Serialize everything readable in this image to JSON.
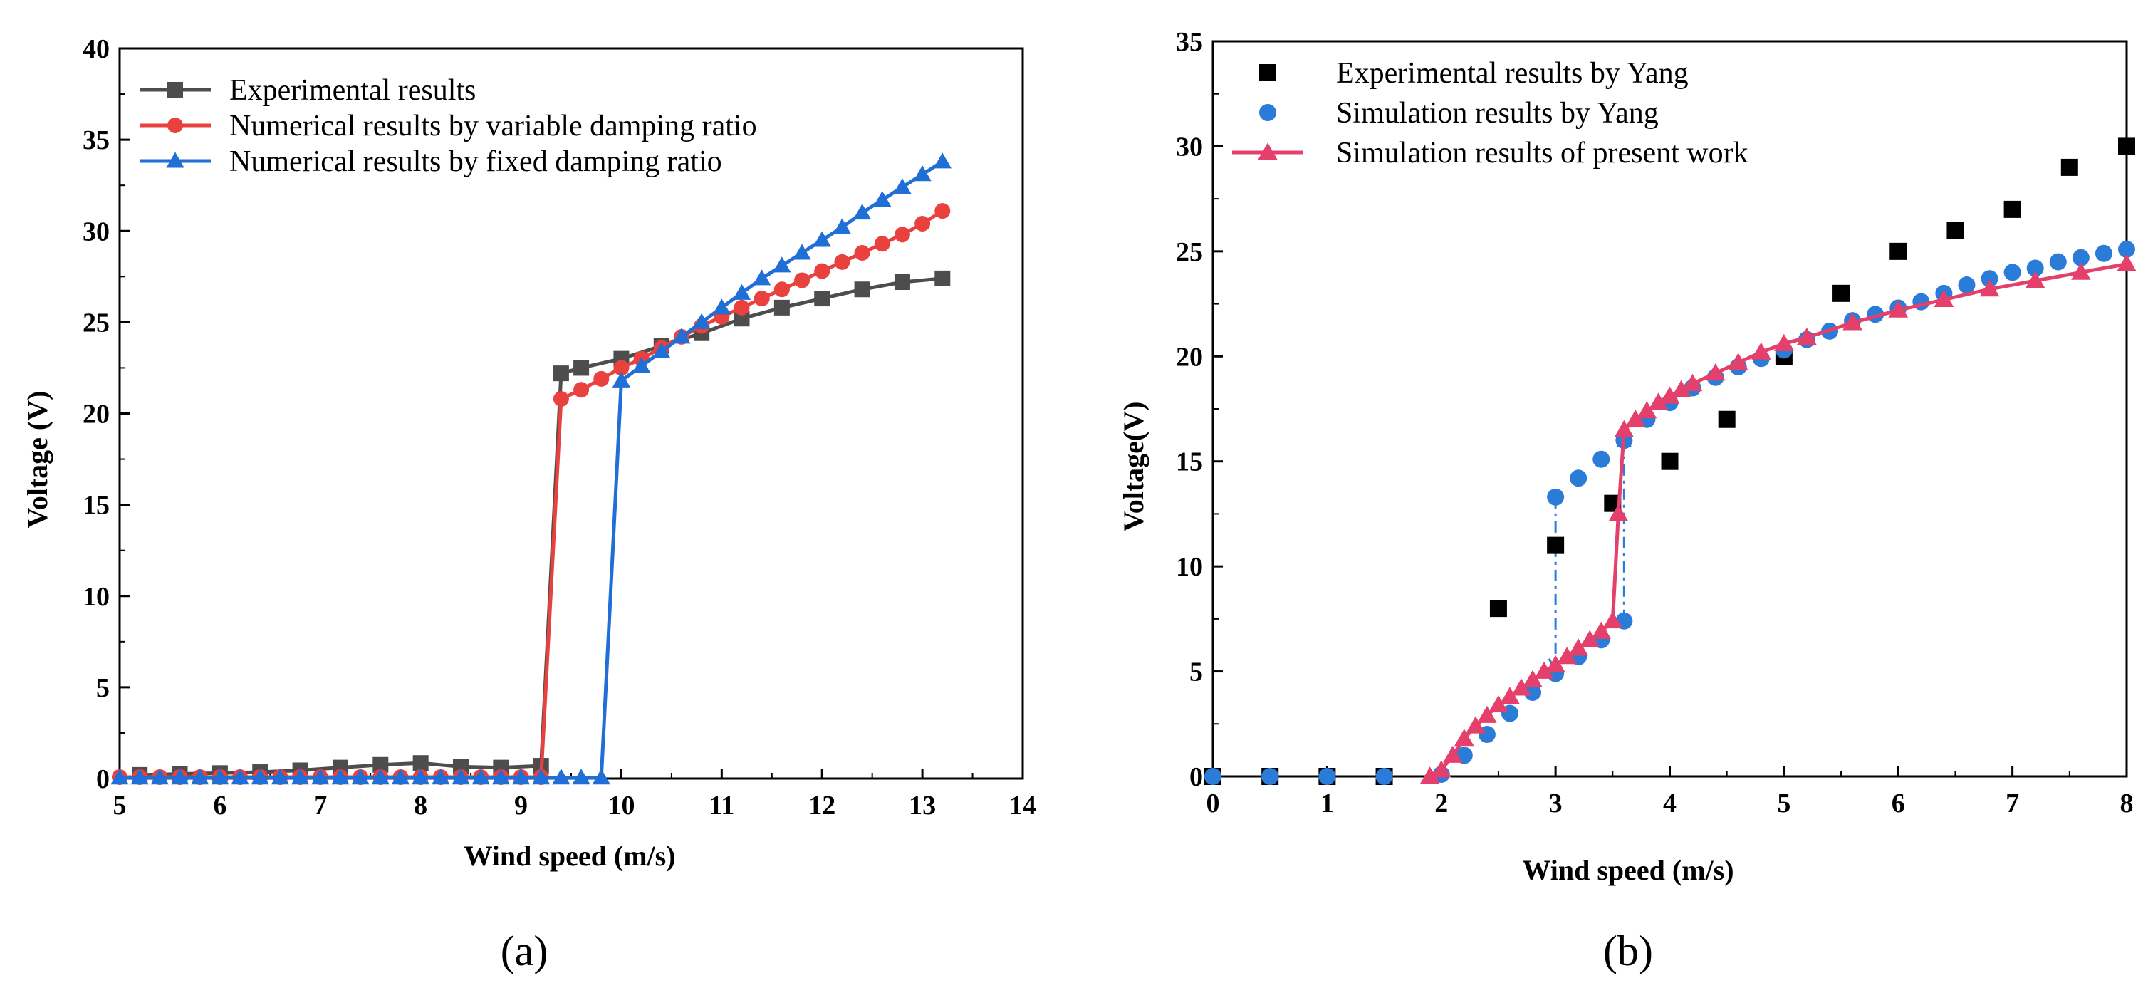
{
  "chart_data": [
    {
      "type": "line",
      "panel_label": "(a)",
      "xlabel": "Wind speed (m/s)",
      "ylabel": "Voltage (V)",
      "xlim": [
        5,
        14
      ],
      "ylim": [
        0,
        40
      ],
      "xticks": [
        "5",
        "6",
        "7",
        "8",
        "9",
        "10",
        "11",
        "12",
        "13",
        "14"
      ],
      "yticks": [
        "0",
        "5",
        "10",
        "15",
        "20",
        "25",
        "30",
        "35",
        "40"
      ],
      "legend_position": "top-left",
      "series": [
        {
          "name": "Experimental results",
          "color": "#4d4d4d",
          "marker": "square",
          "line": true,
          "x": [
            5.2,
            5.6,
            6.0,
            6.4,
            6.8,
            7.2,
            7.6,
            8.0,
            8.4,
            8.8,
            9.2,
            9.4,
            9.6,
            10.0,
            10.4,
            10.8,
            11.2,
            11.6,
            12.0,
            12.4,
            12.8,
            13.2
          ],
          "y": [
            0.2,
            0.25,
            0.3,
            0.35,
            0.45,
            0.6,
            0.75,
            0.85,
            0.65,
            0.6,
            0.7,
            22.2,
            22.5,
            23.0,
            23.7,
            24.4,
            25.2,
            25.8,
            26.3,
            26.8,
            27.2,
            27.4
          ]
        },
        {
          "name": "Numerical results by variable damping ratio",
          "color": "#e8413e",
          "marker": "circle",
          "line": true,
          "x": [
            5.0,
            5.2,
            5.4,
            5.6,
            5.8,
            6.0,
            6.2,
            6.4,
            6.6,
            6.8,
            7.0,
            7.2,
            7.4,
            7.6,
            7.8,
            8.0,
            8.2,
            8.4,
            8.6,
            8.8,
            9.0,
            9.2,
            9.4,
            9.6,
            9.8,
            10.0,
            10.2,
            10.4,
            10.6,
            10.8,
            11.0,
            11.2,
            11.4,
            11.6,
            11.8,
            12.0,
            12.2,
            12.4,
            12.6,
            12.8,
            13.0,
            13.2
          ],
          "y": [
            0.08,
            0.08,
            0.08,
            0.08,
            0.08,
            0.08,
            0.08,
            0.08,
            0.08,
            0.08,
            0.08,
            0.08,
            0.08,
            0.08,
            0.08,
            0.08,
            0.08,
            0.08,
            0.08,
            0.08,
            0.08,
            0.08,
            20.8,
            21.3,
            21.9,
            22.5,
            23.0,
            23.6,
            24.2,
            24.8,
            25.3,
            25.8,
            26.3,
            26.8,
            27.3,
            27.8,
            28.3,
            28.8,
            29.3,
            29.8,
            30.4,
            31.1
          ]
        },
        {
          "name": "Numerical results by fixed damping ratio",
          "color": "#1f6fd6",
          "marker": "triangle",
          "line": true,
          "x": [
            5.0,
            5.2,
            5.4,
            5.6,
            5.8,
            6.0,
            6.2,
            6.4,
            6.6,
            6.8,
            7.0,
            7.2,
            7.4,
            7.6,
            7.8,
            8.0,
            8.2,
            8.4,
            8.6,
            8.8,
            9.0,
            9.2,
            9.4,
            9.6,
            9.8,
            10.0,
            10.2,
            10.4,
            10.6,
            10.8,
            11.0,
            11.2,
            11.4,
            11.6,
            11.8,
            12.0,
            12.2,
            12.4,
            12.6,
            12.8,
            13.0,
            13.2
          ],
          "y": [
            0.05,
            0.05,
            0.05,
            0.05,
            0.05,
            0.05,
            0.05,
            0.05,
            0.05,
            0.05,
            0.05,
            0.05,
            0.05,
            0.05,
            0.05,
            0.05,
            0.05,
            0.05,
            0.05,
            0.05,
            0.05,
            0.05,
            0.05,
            0.05,
            0.05,
            21.8,
            22.6,
            23.4,
            24.2,
            25.0,
            25.8,
            26.6,
            27.4,
            28.1,
            28.8,
            29.5,
            30.2,
            31.0,
            31.7,
            32.4,
            33.1,
            33.8
          ]
        }
      ]
    },
    {
      "type": "line",
      "panel_label": "(b)",
      "xlabel": "Wind speed (m/s)",
      "ylabel": "Voltage(V)",
      "xlim": [
        0,
        8
      ],
      "ylim": [
        0,
        35
      ],
      "xticks": [
        "0",
        "1",
        "2",
        "3",
        "4",
        "5",
        "6",
        "7",
        "8"
      ],
      "yticks": [
        "0",
        "5",
        "10",
        "15",
        "20",
        "25",
        "30",
        "35"
      ],
      "legend_position": "top-left",
      "series": [
        {
          "name": "Experimental results by Yang",
          "color": "#000000",
          "marker": "square",
          "line": false,
          "x": [
            0,
            0.5,
            1.0,
            1.5,
            2.5,
            3.0,
            3.5,
            4.0,
            4.5,
            5.0,
            5.5,
            6.0,
            6.5,
            7.0,
            7.5,
            8.0
          ],
          "y": [
            0,
            0,
            0,
            0,
            8,
            11,
            13,
            15,
            17,
            20,
            23,
            25,
            26,
            27,
            29,
            30
          ]
        },
        {
          "name": "Simulation results by Yang",
          "color": "#2b7bd8",
          "marker": "circle",
          "line": false,
          "x": [
            0,
            0.5,
            1.0,
            1.5,
            2.0,
            2.2,
            2.4,
            2.6,
            2.8,
            3.0,
            3.2,
            3.4,
            3.6,
            3.0,
            3.2,
            3.4,
            3.6,
            3.8,
            4.0,
            4.2,
            4.4,
            4.6,
            4.8,
            5.0,
            5.2,
            5.4,
            5.6,
            5.8,
            6.0,
            6.2,
            6.4,
            6.6,
            6.8,
            7.0,
            7.2,
            7.4,
            7.6,
            7.8,
            8.0
          ],
          "y": [
            0,
            0,
            0,
            0,
            0.1,
            1.0,
            2.0,
            3.0,
            4.0,
            4.9,
            5.7,
            6.5,
            7.4,
            13.3,
            14.2,
            15.1,
            16.0,
            17.0,
            17.8,
            18.5,
            19.0,
            19.5,
            19.9,
            20.3,
            20.8,
            21.2,
            21.7,
            22.0,
            22.3,
            22.6,
            23.0,
            23.4,
            23.7,
            24.0,
            24.2,
            24.5,
            24.7,
            24.9,
            25.1
          ]
        },
        {
          "name": "Simulation results of present work",
          "color": "#e5406b",
          "marker": "triangle",
          "line": true,
          "x": [
            1.9,
            2.0,
            2.1,
            2.2,
            2.3,
            2.4,
            2.5,
            2.6,
            2.7,
            2.8,
            2.9,
            3.0,
            3.1,
            3.2,
            3.3,
            3.4,
            3.5,
            3.55,
            3.6,
            3.7,
            3.8,
            3.9,
            4.0,
            4.1,
            4.2,
            4.4,
            4.6,
            4.8,
            5.0,
            5.2,
            5.6,
            6.0,
            6.4,
            6.8,
            7.2,
            7.6,
            8.0
          ],
          "y": [
            0,
            0.3,
            1.0,
            1.8,
            2.4,
            2.9,
            3.4,
            3.8,
            4.2,
            4.6,
            5.0,
            5.3,
            5.7,
            6.1,
            6.5,
            6.9,
            7.4,
            12.5,
            16.5,
            17.0,
            17.4,
            17.8,
            18.1,
            18.4,
            18.7,
            19.2,
            19.7,
            20.2,
            20.6,
            20.9,
            21.6,
            22.2,
            22.7,
            23.2,
            23.6,
            24.0,
            24.4
          ]
        }
      ],
      "annotations": [
        {
          "type": "dashdot-arrow",
          "x": 3.0,
          "from_y": 13.3,
          "to_y": 5.0,
          "color": "#2b7bd8"
        },
        {
          "type": "dashdot-arrow",
          "x": 3.6,
          "from_y": 7.4,
          "to_y": 16.3,
          "color": "#2b7bd8"
        }
      ]
    }
  ]
}
